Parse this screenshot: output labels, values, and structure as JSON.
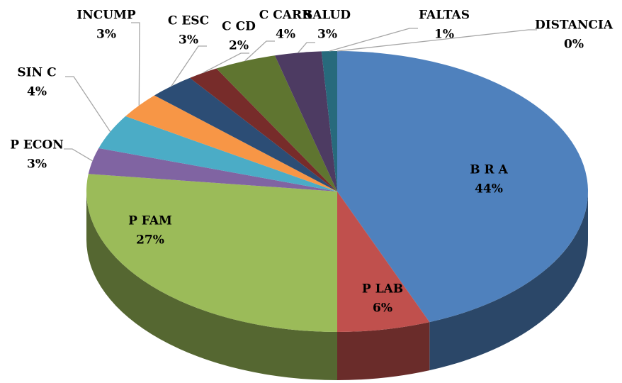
{
  "chart_data": {
    "type": "pie",
    "categories": [
      "B R A",
      "P LAB",
      "P FAM",
      "P ECON",
      "SIN C",
      "INCUMP",
      "C ESC",
      "C CD",
      "C CARR",
      "SALUD",
      "FALTAS",
      "DISTANCIA"
    ],
    "values": [
      44,
      6,
      27,
      3,
      4,
      3,
      3,
      2,
      4,
      3,
      1,
      0
    ],
    "value_labels": [
      "44%",
      "6%",
      "27%",
      "3%",
      "4%",
      "3%",
      "3%",
      "2%",
      "4%",
      "3%",
      "1%",
      "0%"
    ],
    "colors": [
      "#4f81bd",
      "#c0504d",
      "#9bbb59",
      "#8064a2",
      "#4bacc6",
      "#f79646",
      "#2c4d75",
      "#772c2a",
      "#5f7530",
      "#4d3b62",
      "#276a7c",
      "#b65708"
    ]
  }
}
